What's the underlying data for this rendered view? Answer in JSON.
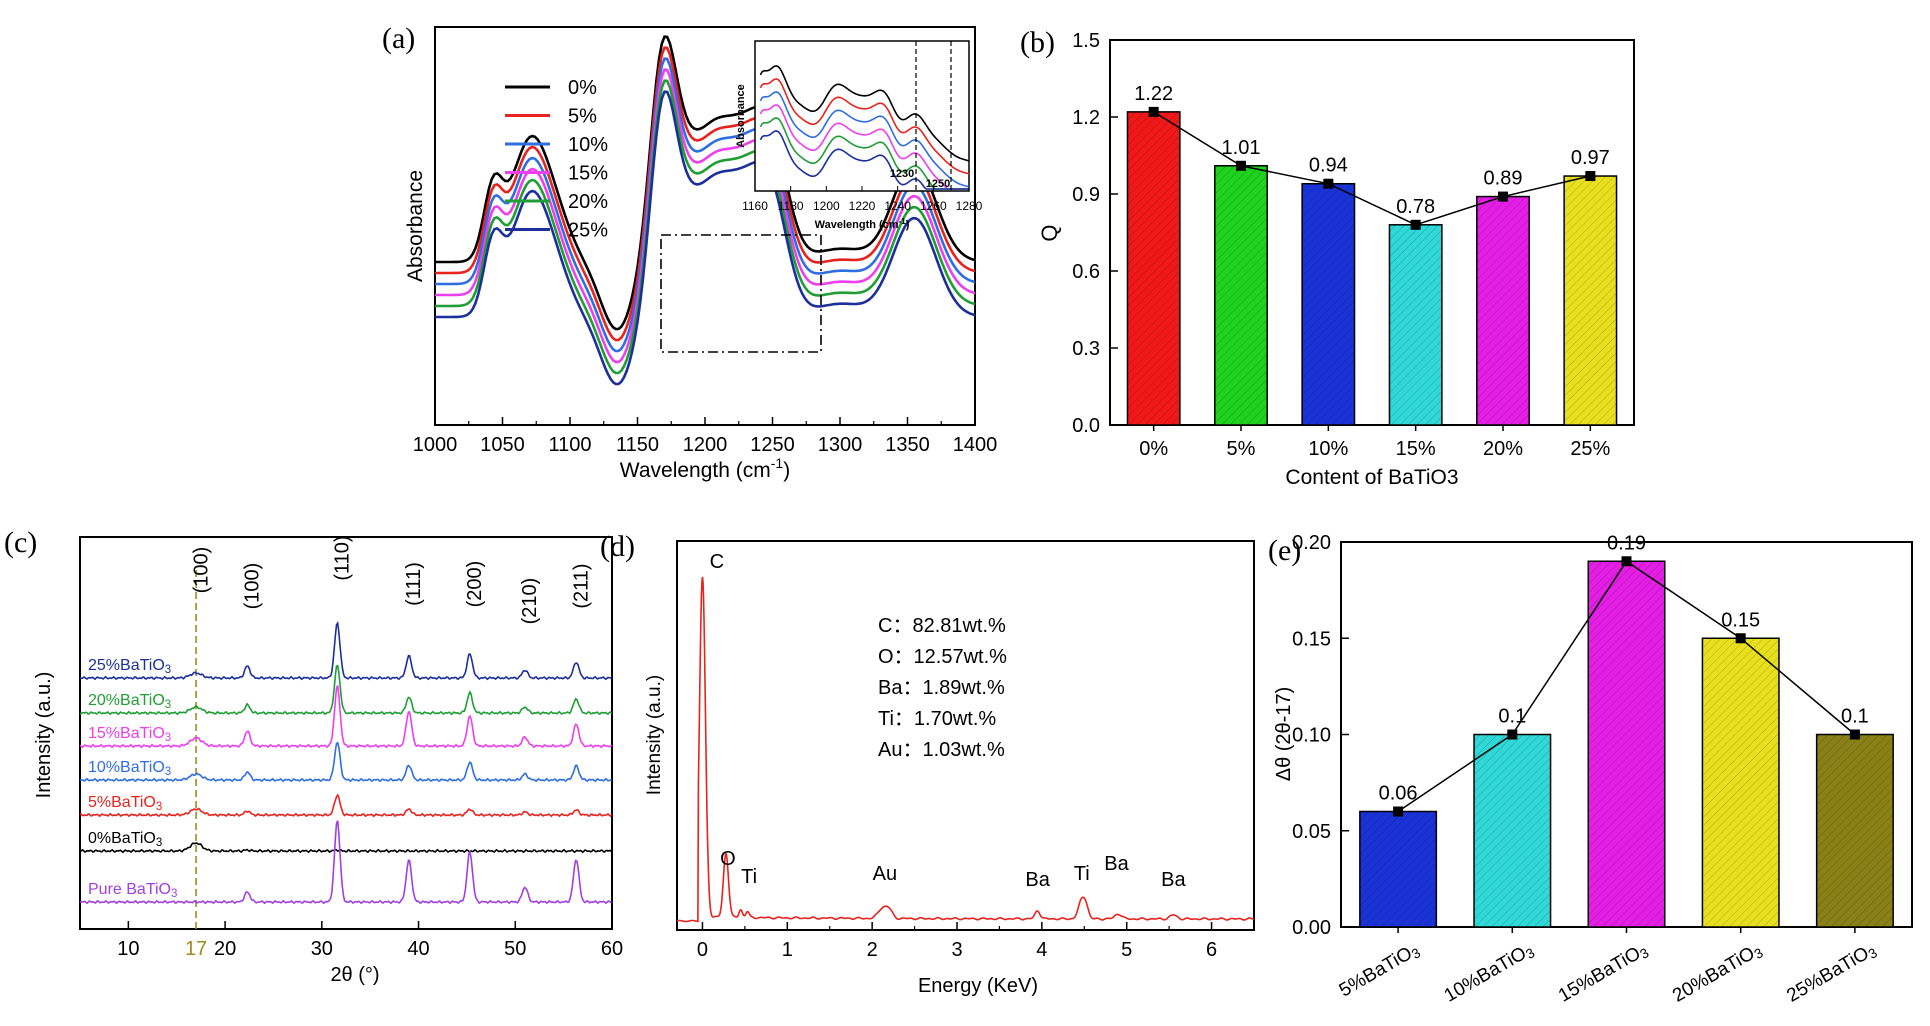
{
  "chart_data": [
    {
      "id": "a",
      "panel_label": "(a)",
      "type": "line",
      "xlabel": "Wavelength (cm",
      "xlabel_sup": "-1",
      "xlabel_end": ")",
      "ylabel": "Absorbance",
      "xlim": [
        1000,
        1400
      ],
      "xticks": [
        "1000",
        "1050",
        "1100",
        "1150",
        "1200",
        "1250",
        "1300",
        "1350",
        "1400"
      ],
      "legend": "top-left",
      "series": [
        {
          "name": "0%",
          "color": "#000000"
        },
        {
          "name": "5%",
          "color": "#e8231e"
        },
        {
          "name": "10%",
          "color": "#2f6ee0"
        },
        {
          "name": "15%",
          "color": "#ee3fee"
        },
        {
          "name": "20%",
          "color": "#1f9e35"
        },
        {
          "name": "25%",
          "color": "#1c2f9b"
        }
      ],
      "inset": {
        "ylabel": "Absorbance",
        "xlabel": "Wavelength (cm",
        "xlabel_sup": "-1",
        "xlabel_end": ")",
        "xlim": [
          1160,
          1280
        ],
        "xticks": [
          "1160",
          "1180",
          "1200",
          "1220",
          "1240",
          "1260",
          "1280"
        ],
        "annotations": [
          "1230",
          "1250"
        ]
      }
    },
    {
      "id": "b",
      "panel_label": "(b)",
      "type": "bar",
      "xlabel": "Content of BaTiO3",
      "ylabel": "Q",
      "ylim": [
        0,
        1.5
      ],
      "yticks": [
        "0.0",
        "0.3",
        "0.6",
        "0.9",
        "1.2",
        "1.5"
      ],
      "categories": [
        "0%",
        "5%",
        "10%",
        "15%",
        "20%",
        "25%"
      ],
      "values": [
        1.22,
        1.01,
        0.94,
        0.78,
        0.89,
        0.97
      ],
      "labels": [
        "1.22",
        "1.01",
        "0.94",
        "0.78",
        "0.89",
        "0.97"
      ],
      "colors": [
        "#f01818",
        "#1ed21e",
        "#1a33d6",
        "#30d8d8",
        "#e41ee4",
        "#e8e01e"
      ]
    },
    {
      "id": "c",
      "panel_label": "(c)",
      "type": "line",
      "xlabel": "2θ (°)",
      "ylabel": "Intensity (a.u.)",
      "xlim": [
        5,
        60
      ],
      "xticks": [
        "10",
        "20",
        "30",
        "40",
        "50",
        "60"
      ],
      "marker_label": "17",
      "peaks": [
        "(100)",
        "(100)",
        "(110)",
        "(111)",
        "(200)",
        "(210)",
        "(211)"
      ],
      "series": [
        {
          "name": "25%BaTiO3",
          "color": "#1c2f9b"
        },
        {
          "name": "20%BaTiO3",
          "color": "#1f9e35"
        },
        {
          "name": "15%BaTiO3",
          "color": "#ee3fee"
        },
        {
          "name": "10%BaTiO3",
          "color": "#2f6ee0"
        },
        {
          "name": "5%BaTiO3",
          "color": "#e8231e"
        },
        {
          "name": "0%BaTiO3",
          "color": "#000000"
        },
        {
          "name": "Pure BaTiO3",
          "color": "#a040e0"
        }
      ]
    },
    {
      "id": "d",
      "panel_label": "(d)",
      "type": "line",
      "xlabel": "Energy (KeV)",
      "ylabel": "Intensity (a.u.)",
      "xlim": [
        -0.3,
        6.5
      ],
      "xticks": [
        "0",
        "1",
        "2",
        "3",
        "4",
        "5",
        "6"
      ],
      "series": [
        {
          "name": "",
          "color": "#e8231e"
        }
      ],
      "element_labels": [
        "C",
        "O",
        "Ti",
        "Au",
        "Ba",
        "Ti",
        "Ba",
        "Ba"
      ],
      "composition": [
        "C：82.81wt.%",
        "O：12.57wt.%",
        "Ba：1.89wt.%",
        "Ti：1.70wt.%",
        "Au：1.03wt.%"
      ]
    },
    {
      "id": "e",
      "panel_label": "(e)",
      "type": "bar",
      "xlabel": "",
      "ylabel": "Δθ (2θ-17)",
      "ylim": [
        0,
        0.2
      ],
      "yticks": [
        "0.00",
        "0.05",
        "0.10",
        "0.15",
        "0.20"
      ],
      "categories": [
        "5%BaTiO3",
        "10%BaTiO3",
        "15%BaTiO3",
        "20%BaTiO3",
        "25%BaTiO3"
      ],
      "values": [
        0.06,
        0.1,
        0.19,
        0.15,
        0.1
      ],
      "labels": [
        "0.06",
        "0.1",
        "0.19",
        "0.15",
        "0.1"
      ],
      "colors": [
        "#1a33d6",
        "#30d8d8",
        "#e41ee4",
        "#e8e01e",
        "#8a8018"
      ]
    }
  ]
}
